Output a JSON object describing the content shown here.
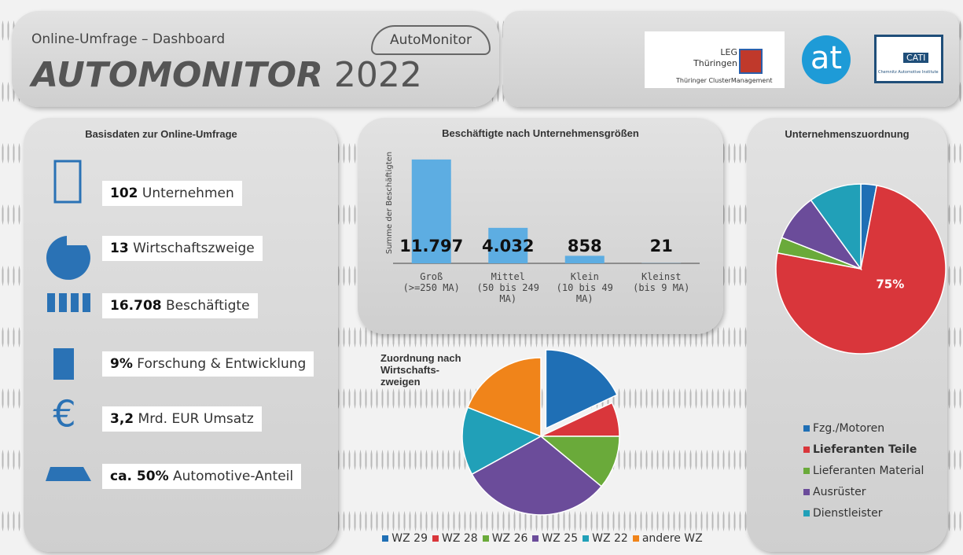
{
  "header": {
    "subtitle": "Online-Umfrage – Dashboard",
    "title": "AUTOMONITOR",
    "year": "2022",
    "logo_automonitor": "AutoMonitor",
    "logo_leg": "LEG",
    "logo_leg_region": "Thüringen",
    "logo_leg_sub": "Thüringer ClusterManagement",
    "logo_at": "at",
    "logo_cati": "CATI",
    "logo_cati_sub": "Chemnitz Automotive Institute"
  },
  "basis": {
    "title": "Basisdaten zur Online-Umfrage",
    "items": [
      {
        "value": "102",
        "label": "Unternehmen"
      },
      {
        "value": "13",
        "label": "Wirtschaftszweige"
      },
      {
        "value": "16.708",
        "label": "Beschäftigte"
      },
      {
        "value": "9%",
        "label": "Forschung & Entwicklung"
      },
      {
        "value": "3,2",
        "label": "Mrd. EUR Umsatz"
      },
      {
        "value": "ca. 50%",
        "label": "Automotive-Anteil"
      }
    ]
  },
  "chart_data": [
    {
      "type": "bar",
      "title": "Beschäftigte nach Unternehmensgrößen",
      "y_label": "Summe der Beschäftigten",
      "categories": [
        "Groß\n(>=250 MA)",
        "Mittel\n(50 bis 249\nMA)",
        "Klein\n(10 bis 49 MA)",
        "Kleinst\n(bis 9 MA)"
      ],
      "values": [
        11797,
        4032,
        858,
        21
      ],
      "value_labels": [
        "11.797",
        "4.032",
        "858",
        "21"
      ],
      "color": "#5dade2",
      "ylim": [
        0,
        12500
      ]
    },
    {
      "type": "pie",
      "title": "Zuordnung nach\nWirtschafts-\nzweigen",
      "categories": [
        "WZ 29",
        "WZ 28",
        "WZ 26",
        "WZ 25",
        "WZ 22",
        "andere WZ"
      ],
      "values": [
        18,
        7,
        11,
        31,
        14,
        19
      ],
      "colors": [
        "#1f6fb5",
        "#d9363b",
        "#6aaa3a",
        "#6b4c9a",
        "#21a0b8",
        "#f0841a"
      ],
      "explode": [
        true,
        false,
        false,
        false,
        false,
        false
      ],
      "legend": "bottom"
    },
    {
      "type": "pie",
      "title": "Unternehmenszuordnung",
      "categories": [
        "Fzg./Motoren",
        "Lieferanten Teile",
        "Lieferanten Material",
        "Ausrüster",
        "Dienstleister"
      ],
      "values": [
        3,
        75,
        3,
        9,
        10
      ],
      "value_labels": [
        null,
        "75%",
        null,
        null,
        null
      ],
      "colors": [
        "#1f6fb5",
        "#d9363b",
        "#6aaa3a",
        "#6b4c9a",
        "#21a0b8"
      ],
      "legend": "bottom-left"
    }
  ]
}
